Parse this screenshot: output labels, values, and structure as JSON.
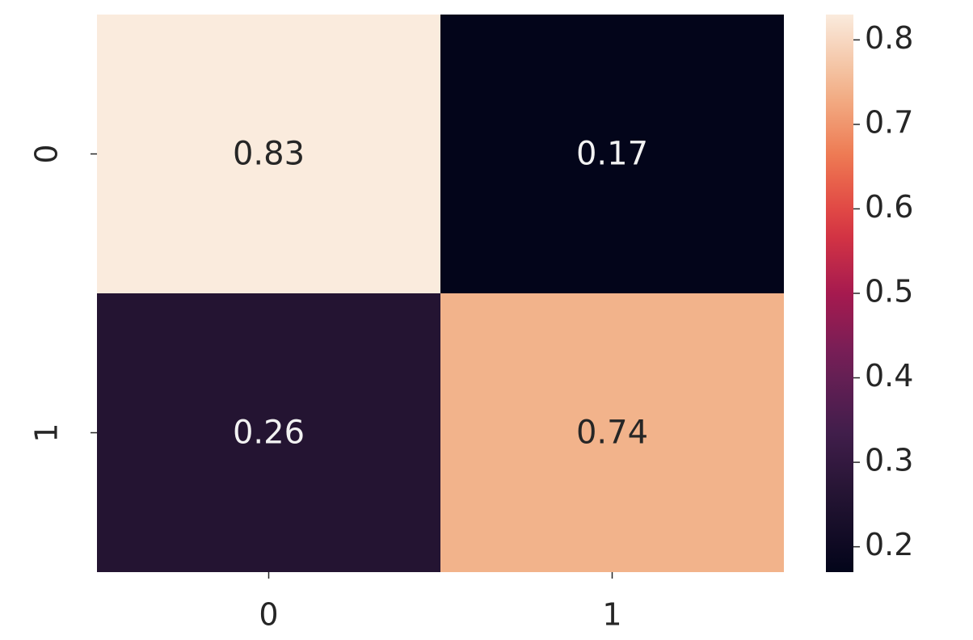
{
  "chart_data": {
    "type": "heatmap",
    "title": "",
    "xlabel": "",
    "ylabel": "",
    "x_categories": [
      "0",
      "1"
    ],
    "y_categories": [
      "0",
      "1"
    ],
    "values": [
      [
        0.83,
        0.17
      ],
      [
        0.26,
        0.74
      ]
    ],
    "cell_labels": [
      [
        "0.83",
        "0.17"
      ],
      [
        "0.26",
        "0.74"
      ]
    ],
    "colorscale": "rocket",
    "colorbar": {
      "range": [
        0.17,
        0.83
      ],
      "ticks": [
        0.2,
        0.3,
        0.4,
        0.5,
        0.6,
        0.7,
        0.8
      ],
      "tick_labels": [
        "0.2",
        "0.3",
        "0.4",
        "0.5",
        "0.6",
        "0.7",
        "0.8"
      ]
    },
    "grid": false
  }
}
